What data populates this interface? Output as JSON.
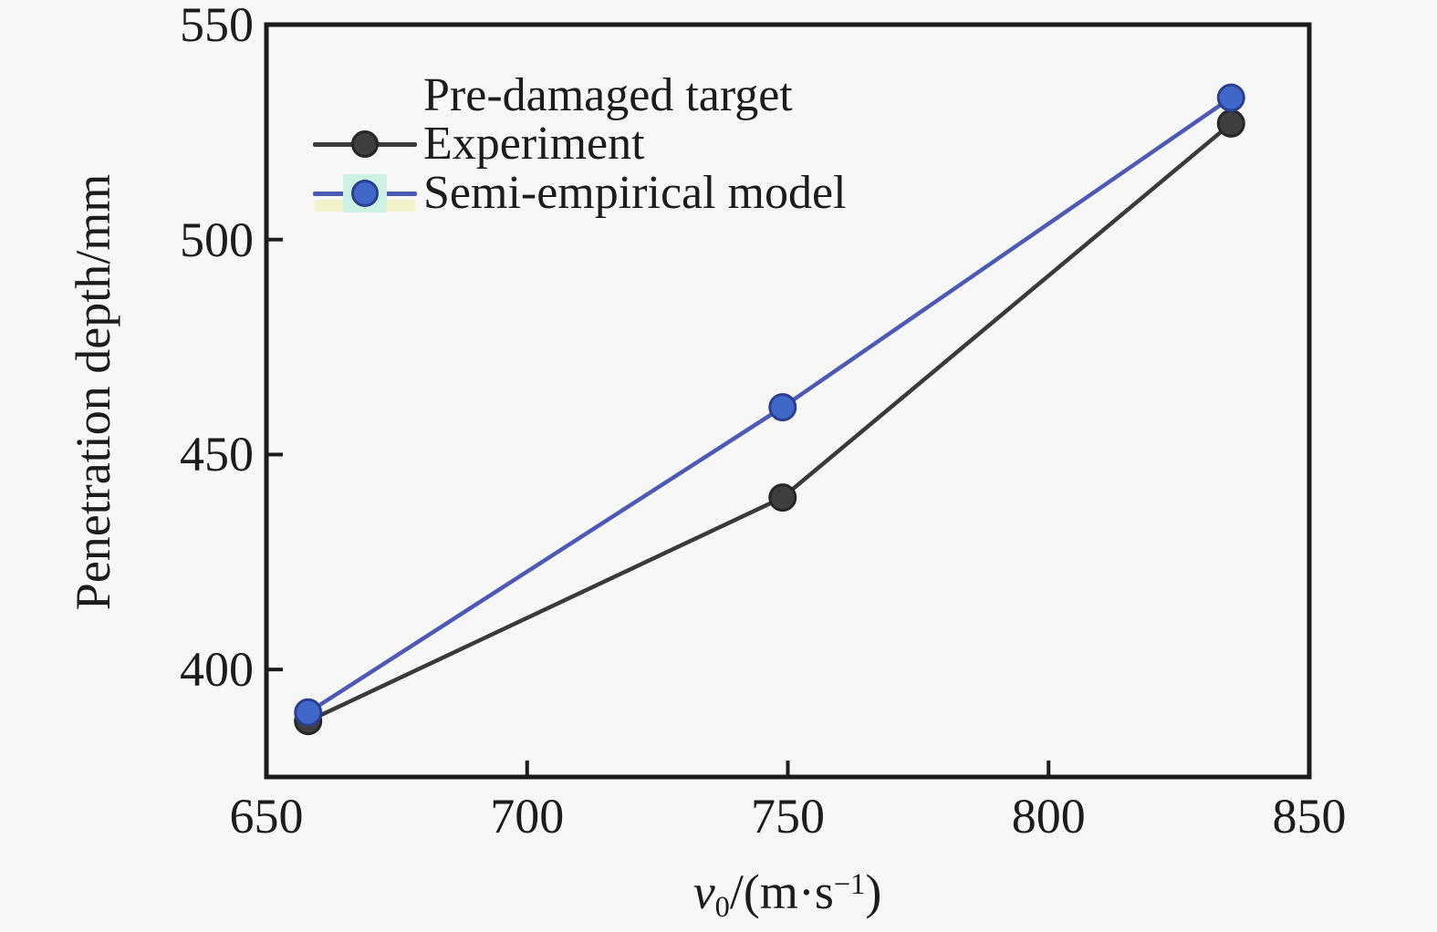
{
  "figure": {
    "background": "#f7f7f7",
    "axis_color": "#1c1c1c"
  },
  "chart_data": {
    "type": "line",
    "title": "",
    "ylabel": "Penetration depth/mm",
    "xlabel_parts": {
      "variable": "v",
      "subscript": "0",
      "unit_open": "/(m·s",
      "superscript": "−1",
      "unit_close": ")"
    },
    "xlim": [
      650,
      850
    ],
    "ylim": [
      375,
      550
    ],
    "x_ticks": [
      650,
      700,
      750,
      800,
      850
    ],
    "y_ticks": [
      400,
      450,
      500,
      550
    ],
    "grid": false,
    "legend_position": "upper-left-inside",
    "legend_title": "Pre-damaged target",
    "series": [
      {
        "name": "Experiment",
        "line_color": "#3a3a3a",
        "marker_fill": "#3e3e3e",
        "marker_edge": "#262626",
        "x": [
          658,
          749,
          835
        ],
        "y": [
          388,
          440,
          527
        ]
      },
      {
        "name": "Semi-empirical model",
        "line_color": "#4d5ab3",
        "marker_fill": "#4167c9",
        "marker_edge": "#2c3e8e",
        "legend_highlight_band": "#f3f3cb",
        "legend_marker_halo": "#cdf2e3",
        "x": [
          658,
          749,
          835
        ],
        "y": [
          390,
          461,
          533
        ]
      }
    ]
  }
}
